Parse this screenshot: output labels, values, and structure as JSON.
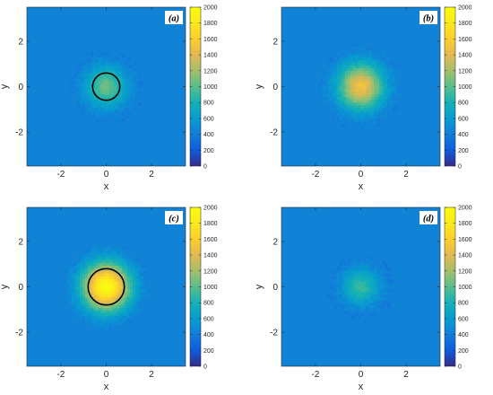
{
  "chart_data": [
    {
      "type": "heatmap",
      "panel_label": "(a)",
      "xlabel": "x",
      "ylabel": "y",
      "xlim": [
        -3.5,
        3.5
      ],
      "ylim": [
        -3.5,
        3.5
      ],
      "x_ticks": [
        -2,
        0,
        2
      ],
      "y_ticks": [
        -2,
        0,
        2
      ],
      "colorbar_range": [
        0,
        2000
      ],
      "colorbar_ticks": [
        0,
        200,
        400,
        600,
        800,
        1000,
        1200,
        1400,
        1600,
        1800,
        2000
      ],
      "blob": {
        "peak": 1050,
        "radius": 1.6
      },
      "circle_overlay": {
        "center": [
          0,
          0
        ],
        "radius": 0.6
      }
    },
    {
      "type": "heatmap",
      "panel_label": "(b)",
      "xlabel": "x",
      "ylabel": "y",
      "xlim": [
        -3.5,
        3.5
      ],
      "ylim": [
        -3.5,
        3.5
      ],
      "x_ticks": [
        -2,
        0,
        2
      ],
      "y_ticks": [
        -2,
        0,
        2
      ],
      "colorbar_range": [
        0,
        2000
      ],
      "colorbar_ticks": [
        0,
        200,
        400,
        600,
        800,
        1000,
        1200,
        1400,
        1600,
        1800,
        2000
      ],
      "blob": {
        "peak": 1500,
        "radius": 1.8
      },
      "circle_overlay": null
    },
    {
      "type": "heatmap",
      "panel_label": "(c)",
      "xlabel": "x",
      "ylabel": "y",
      "xlim": [
        -3.5,
        3.5
      ],
      "ylim": [
        -3.5,
        3.5
      ],
      "x_ticks": [
        -2,
        0,
        2
      ],
      "y_ticks": [
        -2,
        0,
        2
      ],
      "colorbar_range": [
        0,
        2000
      ],
      "colorbar_ticks": [
        0,
        200,
        400,
        600,
        800,
        1000,
        1200,
        1400,
        1600,
        1800,
        2000
      ],
      "blob": {
        "peak": 2000,
        "radius": 1.85
      },
      "circle_overlay": {
        "center": [
          0,
          0
        ],
        "radius": 0.8
      }
    },
    {
      "type": "heatmap",
      "panel_label": "(d)",
      "xlabel": "x",
      "ylabel": "y",
      "xlim": [
        -3.5,
        3.5
      ],
      "ylim": [
        -3.5,
        3.5
      ],
      "x_ticks": [
        -2,
        0,
        2
      ],
      "y_ticks": [
        -2,
        0,
        2
      ],
      "colorbar_range": [
        0,
        2000
      ],
      "colorbar_ticks": [
        0,
        200,
        400,
        600,
        800,
        1000,
        1200,
        1400,
        1600,
        1800,
        2000
      ],
      "blob": {
        "peak": 900,
        "radius": 1.45
      },
      "circle_overlay": null
    }
  ]
}
